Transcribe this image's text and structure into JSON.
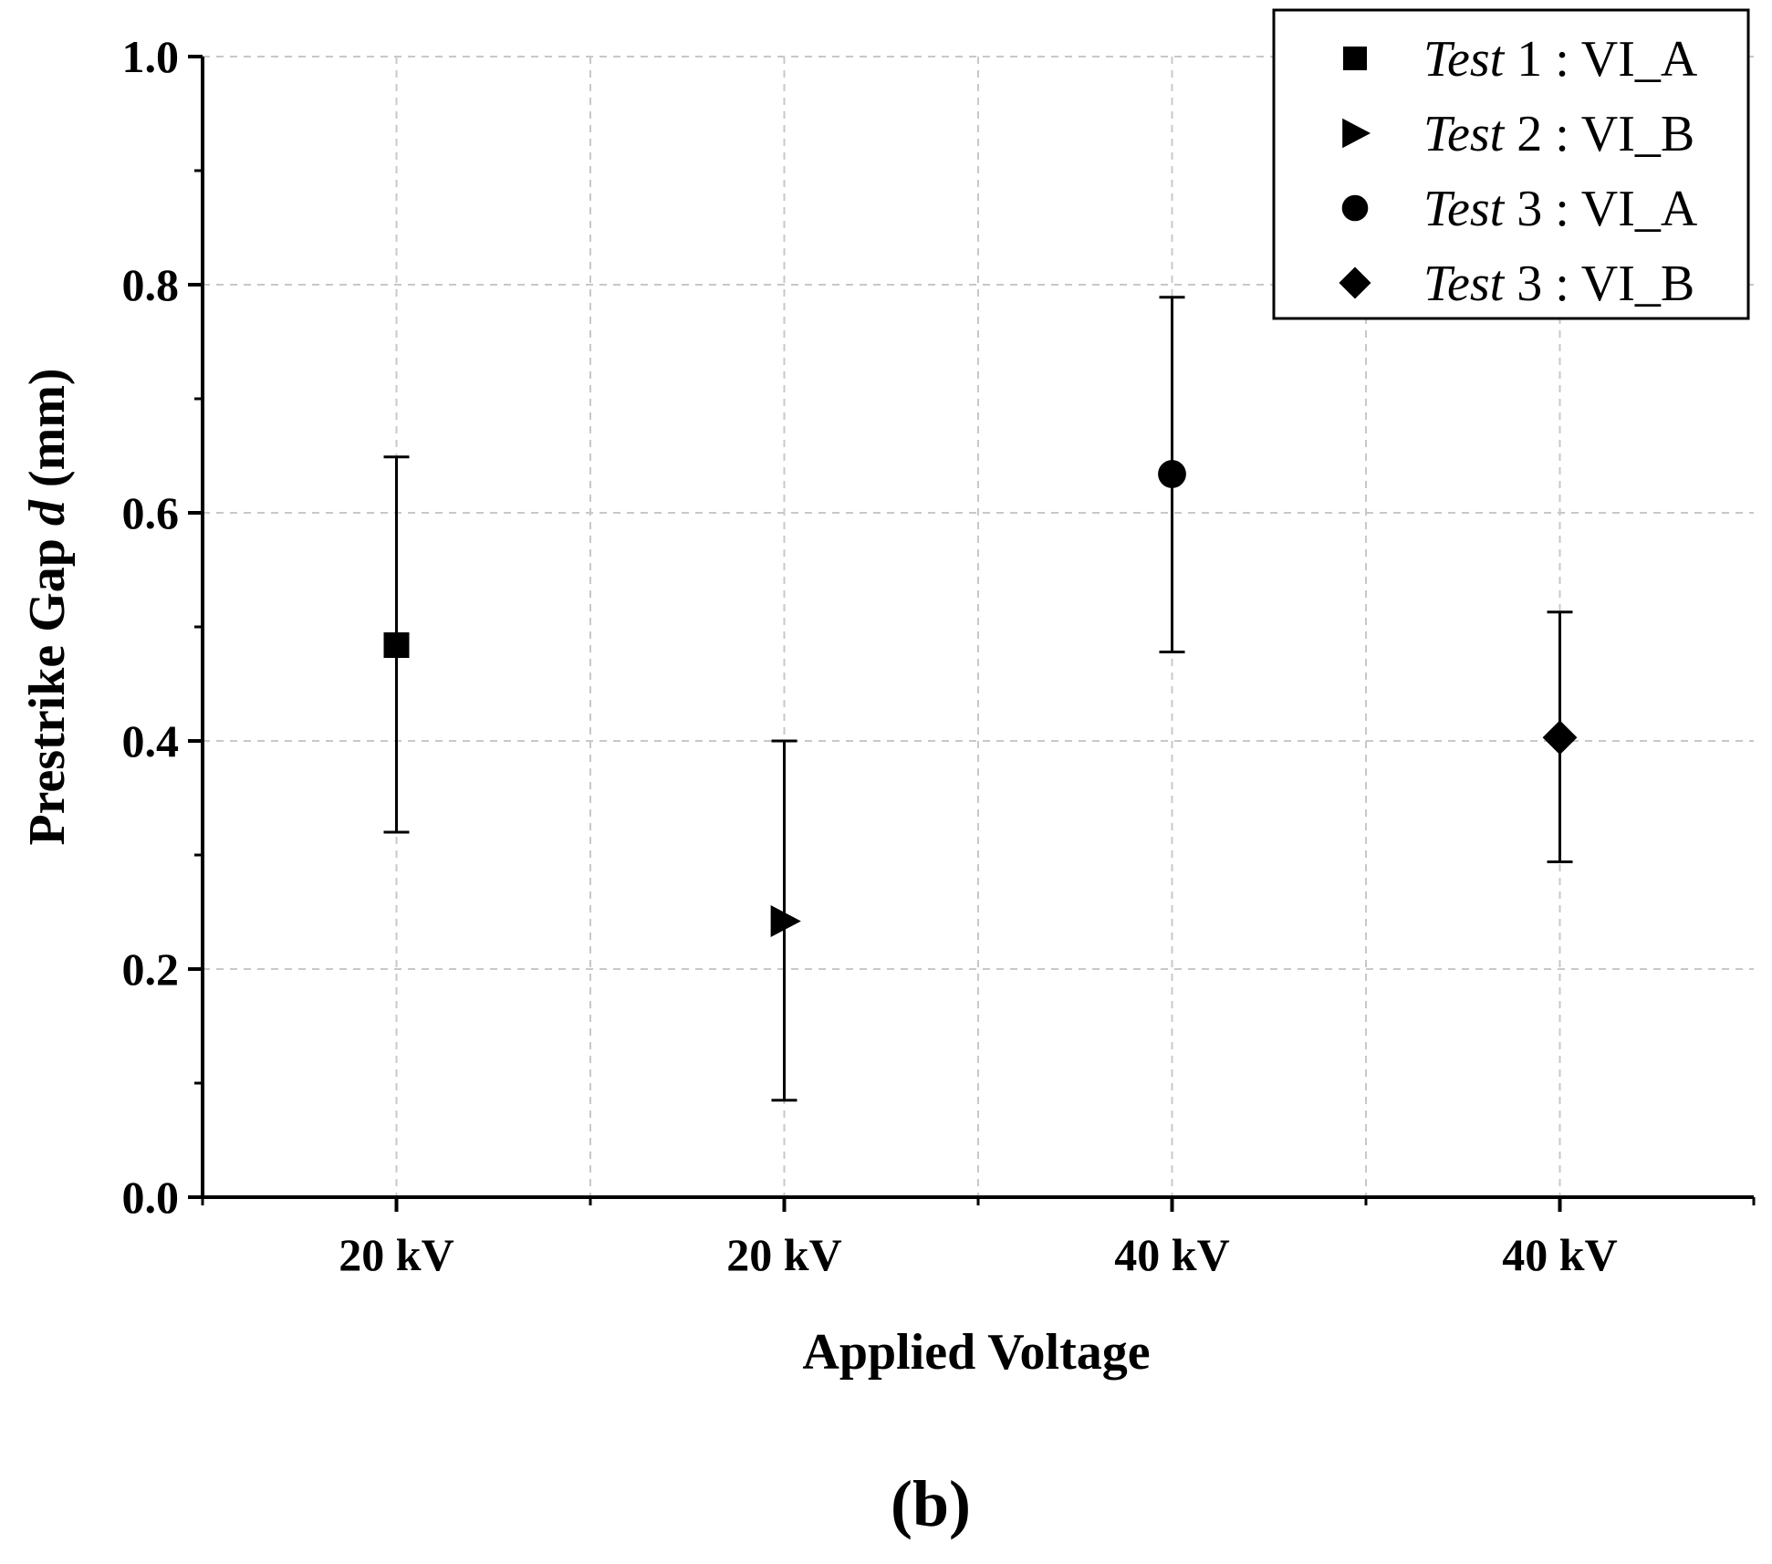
{
  "chart_data": {
    "type": "scatter",
    "title": "",
    "xlabel": "Applied Voltage",
    "ylabel_prefix": "Prestrike Gap ",
    "ylabel_var": "d",
    "ylabel_suffix": " (mm)",
    "ylim": [
      0.0,
      1.0
    ],
    "yticks": [
      "0.0",
      "0.2",
      "0.4",
      "0.6",
      "0.8",
      "1.0"
    ],
    "grid": true,
    "legend_position": "top-right",
    "categories": [
      "20 kV",
      "20 kV",
      "40 kV",
      "40 kV"
    ],
    "series": [
      {
        "name_italic": "Test",
        "name_rest": " 1 : VI_A",
        "marker": "square",
        "x_index": 0,
        "value": 0.484,
        "err_low": 0.32,
        "err_high": 0.649
      },
      {
        "name_italic": "Test",
        "name_rest": " 2 : VI_B",
        "marker": "triangle-right",
        "x_index": 1,
        "value": 0.242,
        "err_low": 0.085,
        "err_high": 0.4
      },
      {
        "name_italic": "Test",
        "name_rest": " 3 : VI_A",
        "marker": "circle",
        "x_index": 2,
        "value": 0.634,
        "err_low": 0.478,
        "err_high": 0.789
      },
      {
        "name_italic": "Test",
        "name_rest": " 3 : VI_B",
        "marker": "diamond",
        "x_index": 3,
        "value": 0.403,
        "err_low": 0.294,
        "err_high": 0.513
      }
    ]
  },
  "panel_label": "(b)"
}
